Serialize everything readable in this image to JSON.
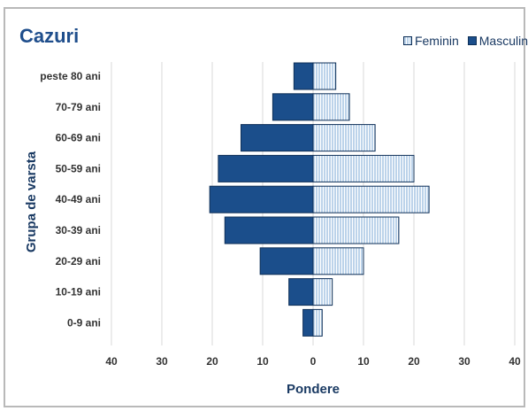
{
  "chart_data": {
    "type": "bar",
    "orientation": "horizontal-diverging",
    "title": "Cazuri",
    "xlabel": "Pondere",
    "ylabel": "Grupa de varsta",
    "categories": [
      "peste 80 ani",
      "70-79 ani",
      "60-69 ani",
      "50-59 ani",
      "40-49 ani",
      "30-39 ani",
      "20-29 ani",
      "10-19 ani",
      "0-9 ani"
    ],
    "series": [
      {
        "name": "Feminin",
        "values": [
          4.5,
          7.2,
          12.3,
          20.0,
          23.0,
          17.0,
          10.0,
          3.8,
          1.8
        ]
      },
      {
        "name": "Masculin",
        "values": [
          3.8,
          8.0,
          14.3,
          18.8,
          20.5,
          17.5,
          10.5,
          4.8,
          2.0
        ]
      }
    ],
    "xlim": [
      -40,
      40
    ],
    "xticks": [
      {
        "value": -40,
        "label": "40"
      },
      {
        "value": -30,
        "label": "30"
      },
      {
        "value": -20,
        "label": "20"
      },
      {
        "value": -10,
        "label": "10"
      },
      {
        "value": 0,
        "label": "0"
      },
      {
        "value": 10,
        "label": "10"
      },
      {
        "value": 20,
        "label": "20"
      },
      {
        "value": 30,
        "label": "30"
      },
      {
        "value": 40,
        "label": "40"
      }
    ],
    "grid": "vertical",
    "legend_position": "top-right",
    "colors": {
      "Feminin": "#bcd3ea",
      "Masculin": "#1b4e8b",
      "title": "#1f4e8c"
    }
  }
}
